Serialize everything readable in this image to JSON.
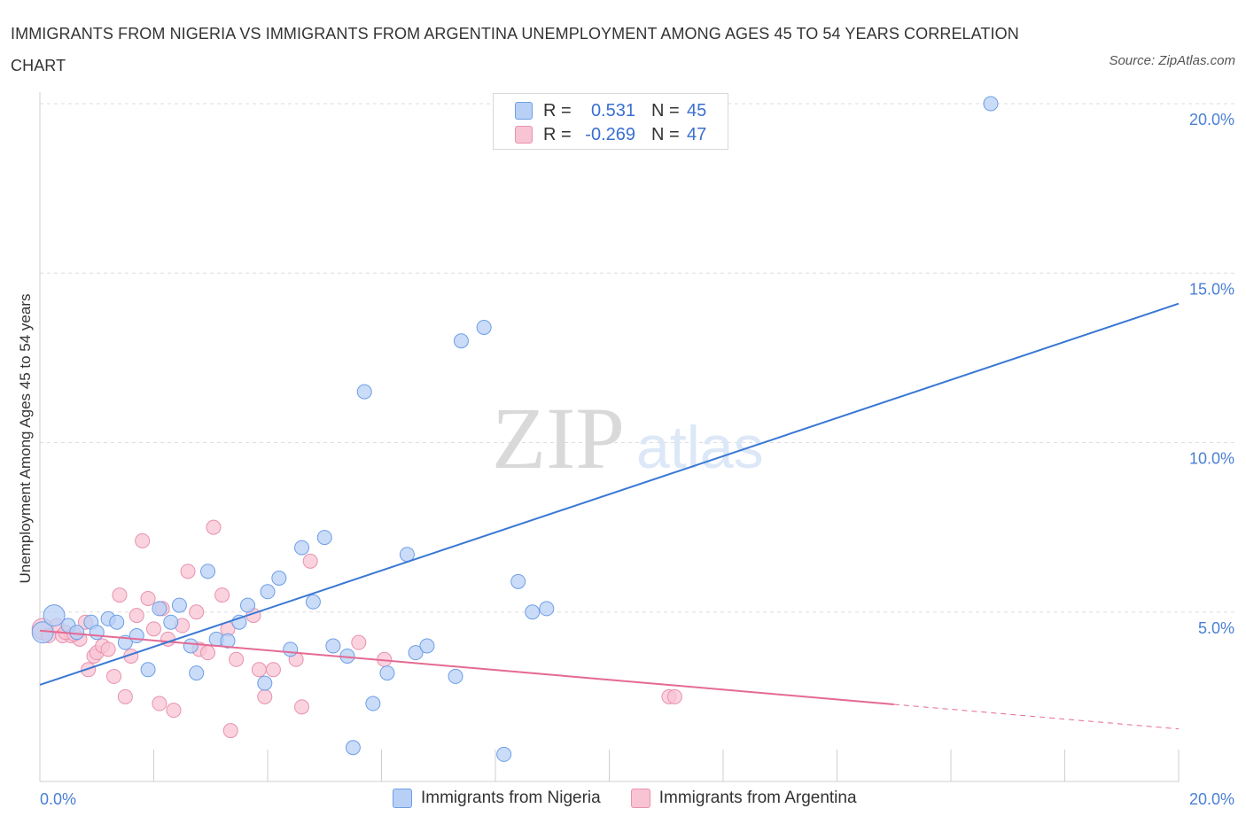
{
  "header": {
    "title": "IMMIGRANTS FROM NIGERIA VS IMMIGRANTS FROM ARGENTINA UNEMPLOYMENT AMONG AGES 45 TO 54 YEARS CORRELATION CHART",
    "source": "Source: ZipAtlas.com"
  },
  "legend": {
    "r_label": "R =",
    "n_label": "N =",
    "rows": [
      {
        "r": "0.531",
        "n": "45"
      },
      {
        "r": "-0.269",
        "n": "47"
      }
    ]
  },
  "watermark": {
    "zip": "ZIP",
    "atlas": "atlas"
  },
  "colors": {
    "nigeria_fill": "#b8d0f5",
    "nigeria_stroke": "#6e9ee6",
    "nigeria_line": "#3a78d4",
    "argentina_fill": "#f8c4d4",
    "argentina_stroke": "#e891ae",
    "argentina_line": "#e46a94"
  },
  "chart_data": {
    "type": "scatter",
    "title": "IMMIGRANTS FROM NIGERIA VS IMMIGRANTS FROM ARGENTINA UNEMPLOYMENT AMONG AGES 45 TO 54 YEARS CORRELATION CHART",
    "xlabel": "",
    "ylabel": "Unemployment Among Ages 45 to 54 years",
    "xlim": [
      0,
      20
    ],
    "ylim": [
      0,
      20
    ],
    "x_tick_labels": [
      "0.0%",
      "20.0%"
    ],
    "y_ticks": [
      5,
      10,
      15,
      20
    ],
    "y_tick_labels": [
      "5.0%",
      "10.0%",
      "15.0%",
      "20.0%"
    ],
    "grid": true,
    "series": [
      {
        "name": "Immigrants from Nigeria",
        "r": 0.531,
        "n": 45,
        "trend": {
          "x0": 0,
          "y0": 2.85,
          "x1": 20,
          "y1": 14.1,
          "solid_until": 20
        },
        "points": [
          {
            "x": 0.05,
            "y": 4.4,
            "big": true
          },
          {
            "x": 0.25,
            "y": 4.9,
            "big": true
          },
          {
            "x": 0.5,
            "y": 4.6
          },
          {
            "x": 0.65,
            "y": 4.4
          },
          {
            "x": 0.9,
            "y": 4.7
          },
          {
            "x": 1.0,
            "y": 4.4
          },
          {
            "x": 1.2,
            "y": 4.8
          },
          {
            "x": 1.35,
            "y": 4.7
          },
          {
            "x": 1.5,
            "y": 4.1
          },
          {
            "x": 1.7,
            "y": 4.3
          },
          {
            "x": 1.9,
            "y": 3.3
          },
          {
            "x": 2.1,
            "y": 5.1
          },
          {
            "x": 2.3,
            "y": 4.7
          },
          {
            "x": 2.45,
            "y": 5.2
          },
          {
            "x": 2.65,
            "y": 4.0
          },
          {
            "x": 2.75,
            "y": 3.2
          },
          {
            "x": 2.95,
            "y": 6.2
          },
          {
            "x": 3.1,
            "y": 4.2
          },
          {
            "x": 3.3,
            "y": 4.15
          },
          {
            "x": 3.5,
            "y": 4.7
          },
          {
            "x": 3.65,
            "y": 5.2
          },
          {
            "x": 3.95,
            "y": 2.9
          },
          {
            "x": 4.0,
            "y": 5.6
          },
          {
            "x": 4.2,
            "y": 6.0
          },
          {
            "x": 4.4,
            "y": 3.9
          },
          {
            "x": 4.6,
            "y": 6.9
          },
          {
            "x": 4.8,
            "y": 5.3
          },
          {
            "x": 5.0,
            "y": 7.2
          },
          {
            "x": 5.15,
            "y": 4.0
          },
          {
            "x": 5.4,
            "y": 3.7
          },
          {
            "x": 5.5,
            "y": 1.0
          },
          {
            "x": 5.7,
            "y": 11.5
          },
          {
            "x": 5.85,
            "y": 2.3
          },
          {
            "x": 6.1,
            "y": 3.2
          },
          {
            "x": 6.45,
            "y": 6.7
          },
          {
            "x": 6.6,
            "y": 3.8
          },
          {
            "x": 6.8,
            "y": 4.0
          },
          {
            "x": 7.3,
            "y": 3.1
          },
          {
            "x": 7.4,
            "y": 13.0
          },
          {
            "x": 7.8,
            "y": 13.4
          },
          {
            "x": 8.15,
            "y": 0.8
          },
          {
            "x": 8.4,
            "y": 5.9
          },
          {
            "x": 8.65,
            "y": 5.0
          },
          {
            "x": 8.9,
            "y": 5.1
          },
          {
            "x": 16.7,
            "y": 20.0
          }
        ]
      },
      {
        "name": "Immigrants from Argentina",
        "r": -0.269,
        "n": 47,
        "trend": {
          "x0": 0,
          "y0": 4.45,
          "x1": 20,
          "y1": 1.55,
          "solid_until": 15
        },
        "points": [
          {
            "x": 0.05,
            "y": 4.5,
            "big": true
          },
          {
            "x": 0.15,
            "y": 4.3
          },
          {
            "x": 0.3,
            "y": 4.6
          },
          {
            "x": 0.4,
            "y": 4.3
          },
          {
            "x": 0.55,
            "y": 4.3
          },
          {
            "x": 0.7,
            "y": 4.2
          },
          {
            "x": 0.8,
            "y": 4.7
          },
          {
            "x": 0.85,
            "y": 3.3
          },
          {
            "x": 0.95,
            "y": 3.7
          },
          {
            "x": 1.0,
            "y": 3.8
          },
          {
            "x": 1.1,
            "y": 4.0
          },
          {
            "x": 1.2,
            "y": 3.9
          },
          {
            "x": 1.3,
            "y": 3.1
          },
          {
            "x": 1.4,
            "y": 5.5
          },
          {
            "x": 1.5,
            "y": 2.5
          },
          {
            "x": 1.6,
            "y": 3.7
          },
          {
            "x": 1.7,
            "y": 4.9
          },
          {
            "x": 1.8,
            "y": 7.1
          },
          {
            "x": 1.9,
            "y": 5.4
          },
          {
            "x": 2.0,
            "y": 4.5
          },
          {
            "x": 2.1,
            "y": 2.3
          },
          {
            "x": 2.15,
            "y": 5.1
          },
          {
            "x": 2.25,
            "y": 4.2
          },
          {
            "x": 2.35,
            "y": 2.1
          },
          {
            "x": 2.5,
            "y": 4.6
          },
          {
            "x": 2.6,
            "y": 6.2
          },
          {
            "x": 2.75,
            "y": 5.0
          },
          {
            "x": 2.8,
            "y": 3.9
          },
          {
            "x": 2.95,
            "y": 3.8
          },
          {
            "x": 3.05,
            "y": 7.5
          },
          {
            "x": 3.2,
            "y": 5.5
          },
          {
            "x": 3.3,
            "y": 4.5
          },
          {
            "x": 3.35,
            "y": 1.5
          },
          {
            "x": 3.45,
            "y": 3.6
          },
          {
            "x": 3.75,
            "y": 4.9
          },
          {
            "x": 3.85,
            "y": 3.3
          },
          {
            "x": 3.95,
            "y": 2.5
          },
          {
            "x": 4.1,
            "y": 3.3
          },
          {
            "x": 4.5,
            "y": 3.6
          },
          {
            "x": 4.6,
            "y": 2.2
          },
          {
            "x": 4.75,
            "y": 6.5
          },
          {
            "x": 5.6,
            "y": 4.1
          },
          {
            "x": 6.05,
            "y": 3.6
          },
          {
            "x": 11.05,
            "y": 2.5
          },
          {
            "x": 11.15,
            "y": 2.5
          },
          {
            "x": 0.45,
            "y": 4.4
          },
          {
            "x": 0.6,
            "y": 4.35
          }
        ]
      }
    ]
  }
}
